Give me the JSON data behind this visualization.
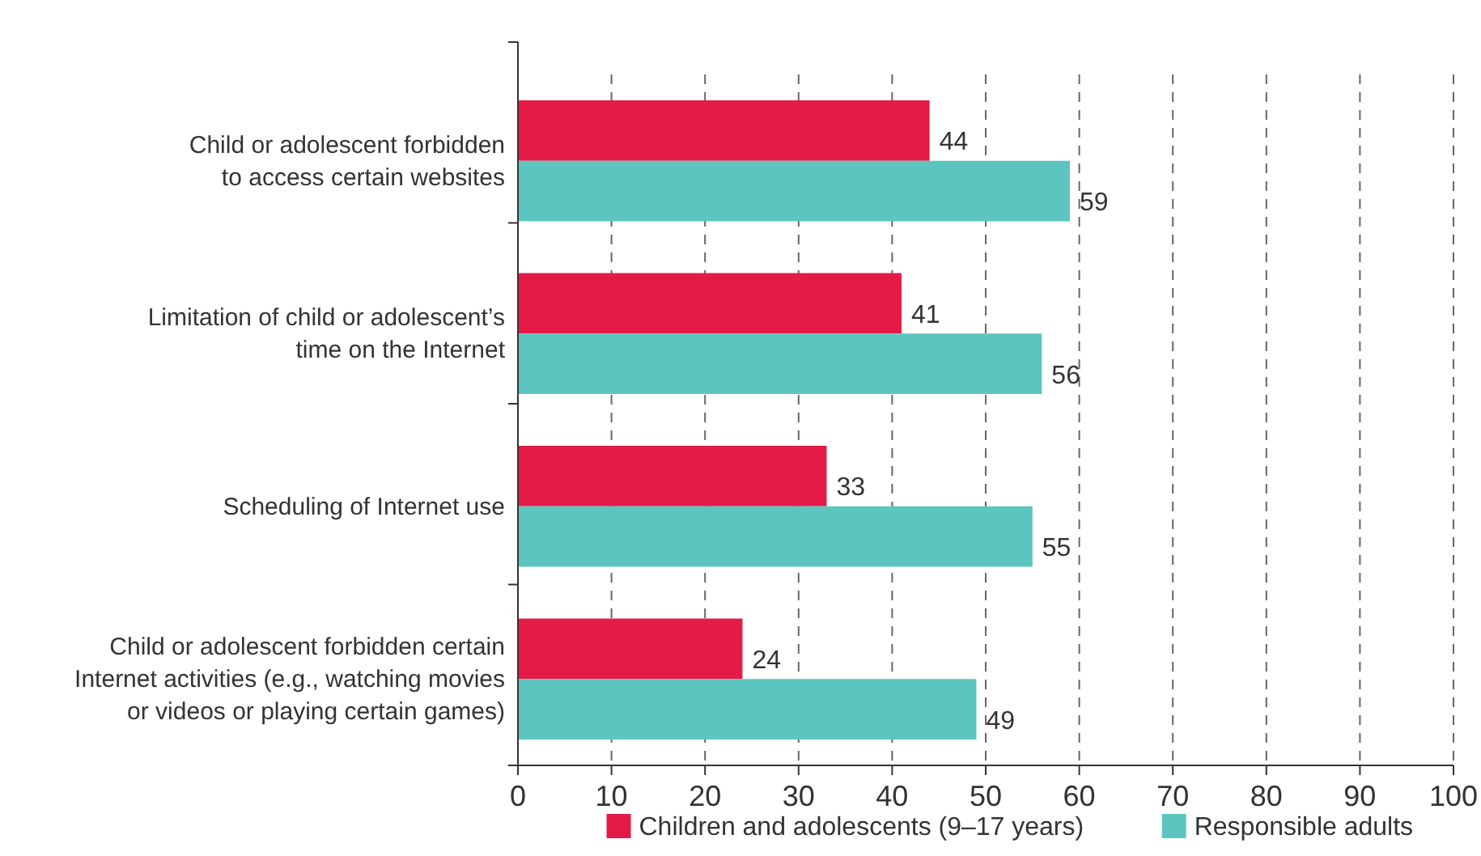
{
  "chart_data": {
    "type": "bar",
    "orientation": "horizontal",
    "categories": [
      "Child or adolescent forbidden\nto access certain websites",
      "Limitation of child or adolescent’s\ntime on the Internet",
      "Scheduling of Internet use",
      "Child or adolescent forbidden certain\nInternet activities (e.g., watching movies\nor videos or playing certain games)"
    ],
    "series": [
      {
        "name": "Children and adolescents (9–17 years)",
        "color": "#e31b46",
        "values": [
          44,
          41,
          33,
          24
        ]
      },
      {
        "name": "Responsible adults",
        "color": "#5cc5c0",
        "values": [
          59,
          56,
          55,
          49
        ]
      }
    ],
    "xlim": [
      0,
      100
    ],
    "xticks": [
      0,
      10,
      20,
      30,
      40,
      50,
      60,
      70,
      80,
      90,
      100
    ],
    "grid": "x",
    "legend": "bottom",
    "data_labels": true
  }
}
